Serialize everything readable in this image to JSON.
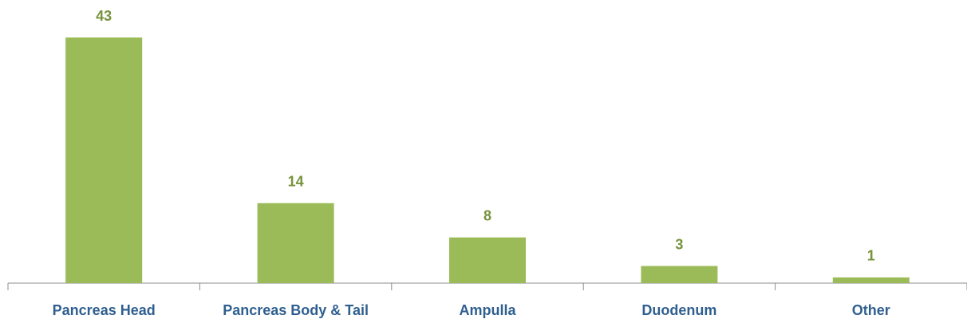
{
  "chart_data": {
    "type": "bar",
    "categories": [
      "Pancreas Head",
      "Pancreas Body & Tail",
      "Ampulla",
      "Duodenum",
      "Other"
    ],
    "values": [
      43,
      14,
      8,
      3,
      1
    ],
    "color": "#9bbb59"
  }
}
